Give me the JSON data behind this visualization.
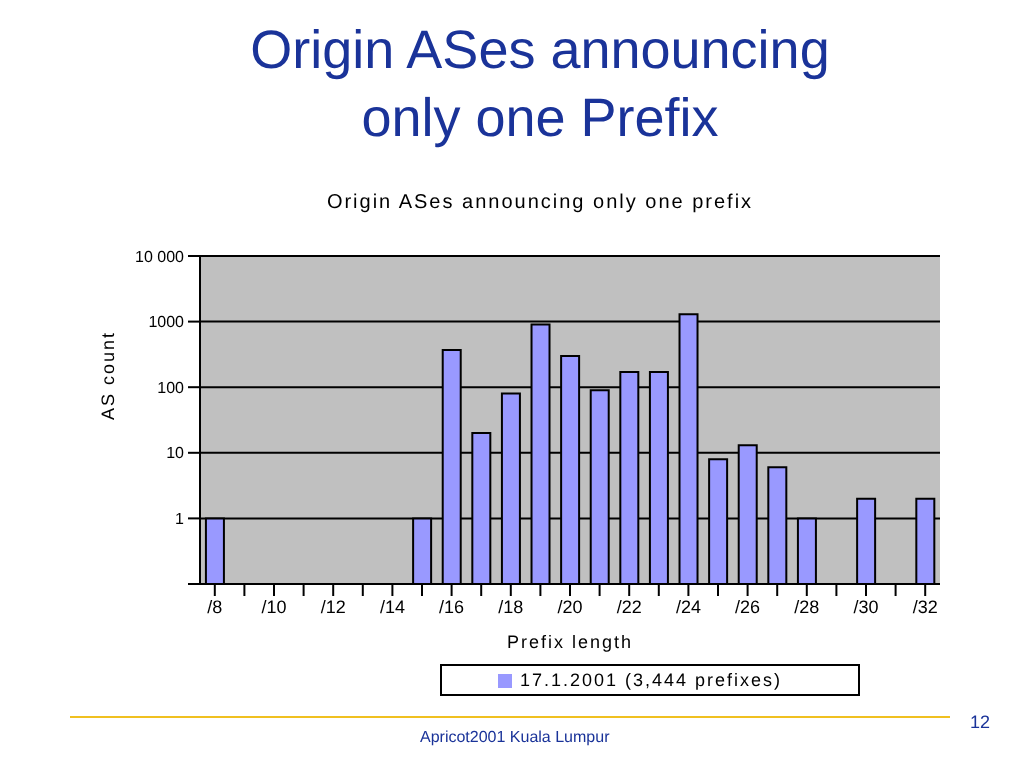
{
  "chart_data": {
    "type": "bar",
    "title": "Origin ASes announcing only one Prefix",
    "subtitle": "Origin ASes announcing only one prefix",
    "xlabel": "Prefix length",
    "ylabel": "AS count",
    "categories": [
      "/8",
      null,
      "/10",
      null,
      "/12",
      null,
      "/14",
      null,
      "/16",
      null,
      "/18",
      null,
      "/20",
      null,
      "/22",
      null,
      "/24",
      null,
      "/26",
      null,
      "/28",
      null,
      "/30",
      null,
      "/32"
    ],
    "series": [
      {
        "name": "17.1.2001 (3,444 prefixes)",
        "color": "#9999ff",
        "values": [
          1,
          null,
          null,
          null,
          null,
          null,
          null,
          1,
          370,
          20,
          80,
          900,
          300,
          90,
          170,
          170,
          1300,
          8,
          13,
          6,
          1,
          null,
          2,
          null,
          2
        ]
      }
    ],
    "log": "y",
    "ylim": [
      0.1,
      10000
    ],
    "yticks": [
      {
        "value": 0.1,
        "label": null
      },
      1,
      10,
      100,
      {
        "value": 1000,
        "label": "1000"
      },
      {
        "value": 10000,
        "label": "10 000"
      }
    ],
    "grid": "y",
    "legend": "bottom",
    "annotations": [
      "Apricot2001 Kuala Lumpur",
      "12"
    ]
  }
}
